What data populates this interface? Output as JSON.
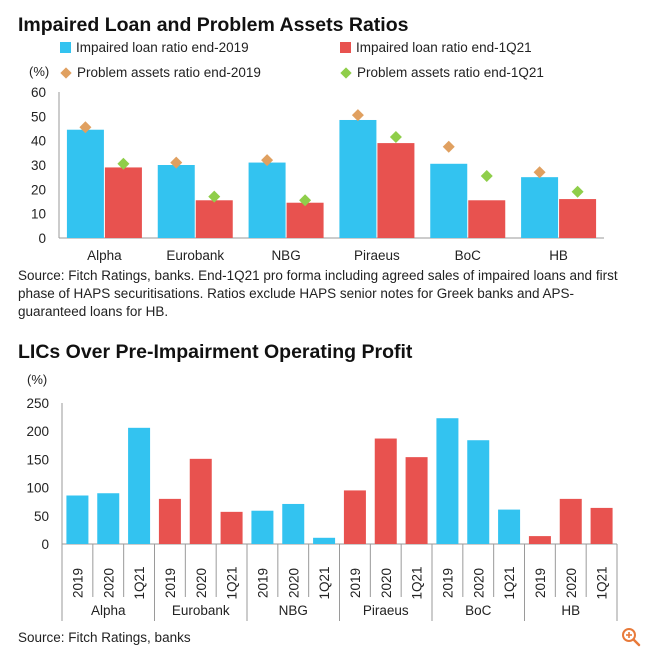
{
  "charts": [
    {
      "title": "Impaired Loan and Problem Assets Ratios",
      "source": "Source: Fitch Ratings, banks. End-1Q21 pro forma including agreed sales of impaired loans and first phase of HAPS securitisations. Ratios exclude HAPS senior notes for Greek banks and APS-guaranteed loans for HB.",
      "legend": [
        {
          "label": "Impaired loan ratio end-2019",
          "marker": "square",
          "color": "#33c3f0"
        },
        {
          "label": "Impaired loan ratio end-1Q21",
          "marker": "square",
          "color": "#e8524f"
        },
        {
          "label": "Problem assets ratio end-2019",
          "marker": "diamond",
          "color": "#e0a060"
        },
        {
          "label": "Problem assets ratio end-1Q21",
          "marker": "diamond",
          "color": "#8fce4a"
        }
      ]
    },
    {
      "title": "LICs Over Pre-Impairment Operating Profit",
      "source": "Source: Fitch Ratings, banks"
    }
  ],
  "chart_data": [
    {
      "type": "bar",
      "unit_label": "(%)",
      "ylim": [
        0,
        60
      ],
      "yticks": [
        0,
        10,
        20,
        30,
        40,
        50,
        60
      ],
      "grid": false,
      "legend_position": "top",
      "categories": [
        "Alpha",
        "Eurobank",
        "NBG",
        "Piraeus",
        "BoC",
        "HB"
      ],
      "series": [
        {
          "name": "Impaired loan ratio end-2019",
          "kind": "bar",
          "color": "#33c3f0",
          "values": [
            44.5,
            30,
            31,
            48.5,
            30.5,
            25
          ]
        },
        {
          "name": "Impaired loan ratio end-1Q21",
          "kind": "bar",
          "color": "#e8524f",
          "values": [
            29,
            15.5,
            14.5,
            39,
            15.5,
            16
          ]
        },
        {
          "name": "Problem assets ratio end-2019",
          "kind": "diamond",
          "color": "#e0a060",
          "values": [
            45.5,
            31,
            32,
            50.5,
            37.5,
            27
          ]
        },
        {
          "name": "Problem assets ratio end-1Q21",
          "kind": "diamond",
          "color": "#8fce4a",
          "values": [
            30.5,
            17,
            15.5,
            41.5,
            25.5,
            19
          ]
        }
      ]
    },
    {
      "type": "bar",
      "unit_label": "(%)",
      "ylim": [
        0,
        250
      ],
      "yticks": [
        0,
        50,
        100,
        150,
        200,
        250
      ],
      "grid": false,
      "groups": [
        {
          "name": "Alpha",
          "color": "#33c3f0",
          "categories": [
            "2019",
            "2020",
            "1Q21"
          ],
          "values": [
            86,
            90,
            206
          ]
        },
        {
          "name": "Eurobank",
          "color": "#e8524f",
          "categories": [
            "2019",
            "2020",
            "1Q21"
          ],
          "values": [
            80,
            151,
            57
          ]
        },
        {
          "name": "NBG",
          "color": "#33c3f0",
          "categories": [
            "2019",
            "2020",
            "1Q21"
          ],
          "values": [
            59,
            71,
            11
          ]
        },
        {
          "name": "Piraeus",
          "color": "#e8524f",
          "categories": [
            "2019",
            "2020",
            "1Q21"
          ],
          "values": [
            95,
            187,
            154
          ]
        },
        {
          "name": "BoC",
          "color": "#33c3f0",
          "categories": [
            "2019",
            "2020",
            "1Q21"
          ],
          "values": [
            223,
            184,
            61
          ]
        },
        {
          "name": "HB",
          "color": "#e8524f",
          "categories": [
            "2019",
            "2020",
            "1Q21"
          ],
          "values": [
            14,
            80,
            64
          ]
        }
      ]
    }
  ]
}
